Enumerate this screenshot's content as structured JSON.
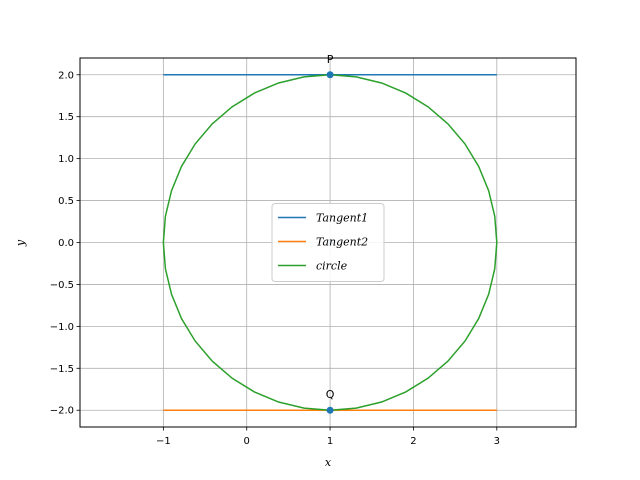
{
  "chart_data": {
    "type": "line",
    "title": "",
    "xlabel": "x",
    "ylabel": "y",
    "xlim": [
      -2,
      3.95
    ],
    "ylim": [
      -2.2,
      2.2
    ],
    "xticks": [
      -1,
      0,
      1,
      2,
      3
    ],
    "xtick_labels": [
      "−1",
      "0",
      "1",
      "2",
      "3"
    ],
    "yticks": [
      -2.0,
      -1.5,
      -1.0,
      -0.5,
      0.0,
      0.5,
      1.0,
      1.5,
      2.0
    ],
    "ytick_labels": [
      "−2.0",
      "−1.5",
      "−1.0",
      "−0.5",
      "0.0",
      "0.5",
      "1.0",
      "1.5",
      "2.0"
    ],
    "grid": true,
    "legend_position": "center",
    "series": [
      {
        "name": "Tangent1",
        "color": "#1f77b4",
        "x": [
          -1,
          3
        ],
        "y": [
          2,
          2
        ]
      },
      {
        "name": "Tangent2",
        "color": "#ff7f0e",
        "x": [
          -1,
          3
        ],
        "y": [
          -2,
          -2
        ]
      },
      {
        "name": "circle",
        "color": "#2ca02c",
        "center": [
          1,
          0
        ],
        "radius": 2
      }
    ],
    "points": [
      {
        "label": "P",
        "x": 1,
        "y": 2
      },
      {
        "label": "Q",
        "x": 1,
        "y": -2
      },
      {
        "label": "",
        "x": 1,
        "y": 0
      }
    ],
    "point_color": "#1f77b4"
  }
}
